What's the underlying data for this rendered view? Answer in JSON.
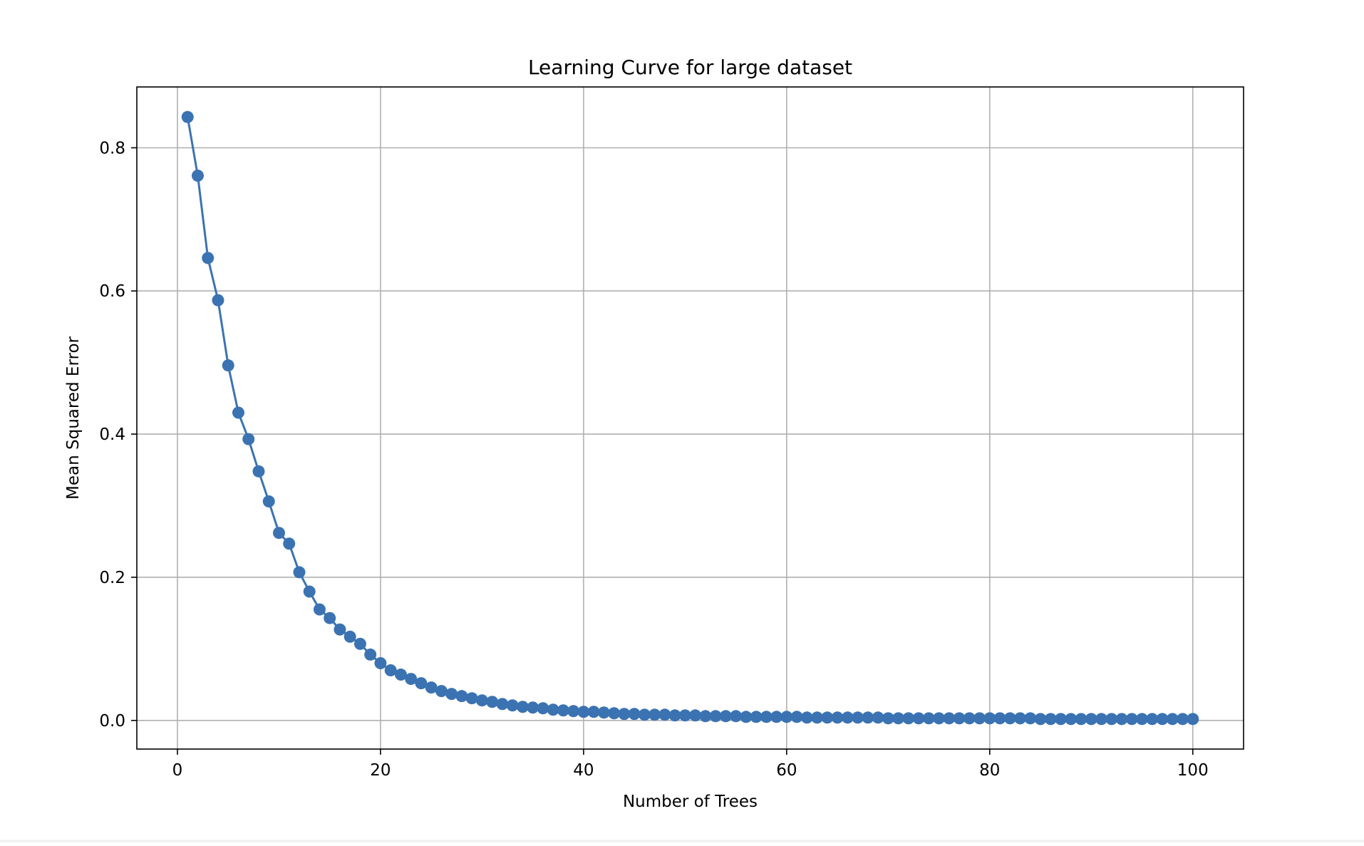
{
  "chart_data": {
    "type": "line",
    "title": "Learning Curve for large dataset",
    "xlabel": "Number of Trees",
    "ylabel": "Mean Squared Error",
    "xlim": [
      -4,
      105
    ],
    "ylim": [
      -0.04,
      0.885
    ],
    "xticks": [
      0,
      20,
      40,
      60,
      80,
      100
    ],
    "xtick_labels": [
      "0",
      "20",
      "40",
      "60",
      "80",
      "100"
    ],
    "yticks": [
      0.0,
      0.2,
      0.4,
      0.6,
      0.8
    ],
    "ytick_labels": [
      "0.0",
      "0.2",
      "0.4",
      "0.6",
      "0.8"
    ],
    "grid": true,
    "line_color": "#3b73b2",
    "marker": "circle",
    "series": [
      {
        "x": [
          1,
          2,
          3,
          4,
          5,
          6,
          7,
          8,
          9,
          10,
          11,
          12,
          13,
          14,
          15,
          16,
          17,
          18,
          19,
          20,
          21,
          22,
          23,
          24,
          25,
          26,
          27,
          28,
          29,
          30,
          31,
          32,
          33,
          34,
          35,
          36,
          37,
          38,
          39,
          40,
          41,
          42,
          43,
          44,
          45,
          46,
          47,
          48,
          49,
          50,
          51,
          52,
          53,
          54,
          55,
          56,
          57,
          58,
          59,
          60,
          61,
          62,
          63,
          64,
          65,
          66,
          67,
          68,
          69,
          70,
          71,
          72,
          73,
          74,
          75,
          76,
          77,
          78,
          79,
          80,
          81,
          82,
          83,
          84,
          85,
          86,
          87,
          88,
          89,
          90,
          91,
          92,
          93,
          94,
          95,
          96,
          97,
          98,
          99,
          100
        ],
        "values": [
          0.843,
          0.761,
          0.646,
          0.587,
          0.496,
          0.43,
          0.393,
          0.348,
          0.306,
          0.262,
          0.247,
          0.207,
          0.18,
          0.155,
          0.143,
          0.127,
          0.117,
          0.107,
          0.092,
          0.08,
          0.07,
          0.064,
          0.058,
          0.052,
          0.046,
          0.041,
          0.037,
          0.034,
          0.031,
          0.028,
          0.026,
          0.023,
          0.021,
          0.019,
          0.018,
          0.017,
          0.015,
          0.014,
          0.013,
          0.012,
          0.012,
          0.011,
          0.01,
          0.009,
          0.009,
          0.008,
          0.008,
          0.008,
          0.007,
          0.007,
          0.007,
          0.006,
          0.006,
          0.006,
          0.006,
          0.005,
          0.005,
          0.005,
          0.005,
          0.005,
          0.005,
          0.004,
          0.004,
          0.004,
          0.004,
          0.004,
          0.004,
          0.004,
          0.004,
          0.003,
          0.003,
          0.003,
          0.003,
          0.003,
          0.003,
          0.003,
          0.003,
          0.003,
          0.003,
          0.003,
          0.003,
          0.003,
          0.003,
          0.003,
          0.002,
          0.002,
          0.002,
          0.002,
          0.002,
          0.002,
          0.002,
          0.002,
          0.002,
          0.002,
          0.002,
          0.002,
          0.002,
          0.002,
          0.002,
          0.002
        ]
      }
    ]
  }
}
